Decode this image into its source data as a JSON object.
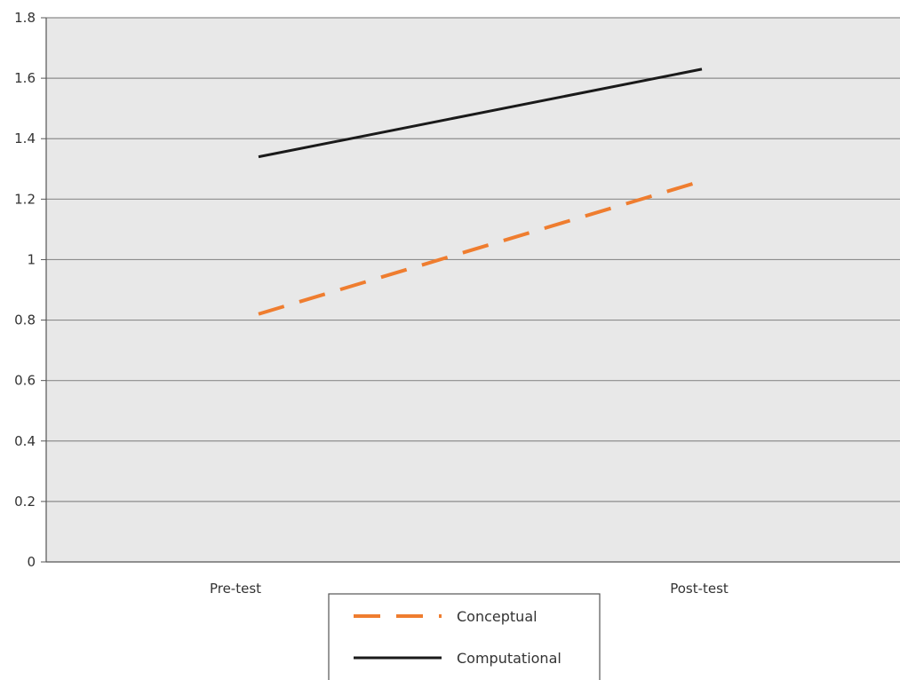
{
  "chart_data": {
    "type": "line",
    "categories": [
      "Pre-test",
      "Post-test"
    ],
    "ylim": [
      0,
      1.8
    ],
    "yticks": [
      "0",
      "0.2",
      "0.4",
      "0.6",
      "0.8",
      "1",
      "1.2",
      "1.4",
      "1.6",
      "1.8"
    ],
    "grid": true,
    "legend_position": "bottom-center",
    "plot_background": "#e8e8e8",
    "series": [
      {
        "name": "Conceptual",
        "values": [
          0.82,
          1.26
        ],
        "color": "#ef7d2f",
        "line_style": "dashed"
      },
      {
        "name": "Computational",
        "values": [
          1.34,
          1.63
        ],
        "color": "#1a1a1a",
        "line_style": "solid"
      }
    ]
  }
}
